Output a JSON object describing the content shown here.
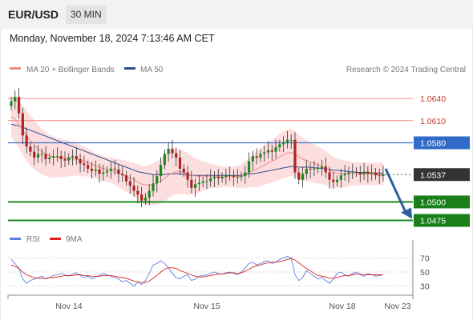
{
  "header": {
    "symbol": "EUR/USD",
    "timeframe": "30 MIN",
    "datetime": "Monday, November 18, 2024 7:13:46 AM CET"
  },
  "legend": {
    "ma20_label": "MA 20 + Bollinger Bands",
    "ma50_label": "MA 50",
    "credit": "Research © 2024 Trading Central",
    "ma20_color": "#f08a8a",
    "ma50_color": "#2e4f8f"
  },
  "rsi_legend": {
    "rsi_label": "RSI",
    "ma9_label": "9MA",
    "rsi_color": "#5b7fe0",
    "ma9_color": "#dd2222"
  },
  "chart_data": {
    "type": "candlestick",
    "instrument": "EUR/USD",
    "interval": "30 MIN",
    "ylim": [
      1.0468,
      1.0665
    ],
    "x_ticks": [
      "Nov 14",
      "Nov 15",
      "Nov 18",
      "Nov 23"
    ],
    "last_price": 1.0537,
    "levels": [
      {
        "value": 1.064,
        "label": "1.0640",
        "kind": "resistance",
        "color": "#f08a8a"
      },
      {
        "value": 1.061,
        "label": "1.0610",
        "kind": "resistance",
        "color": "#f08a8a"
      },
      {
        "value": 1.058,
        "label": "1.0580",
        "kind": "pivot",
        "color": "#3a6fc8"
      },
      {
        "value": 1.0537,
        "label": "1.0537",
        "kind": "last",
        "color": "#333333"
      },
      {
        "value": 1.05,
        "label": "1.0500",
        "kind": "support",
        "color": "#1f8a1f"
      },
      {
        "value": 1.0475,
        "label": "1.0475",
        "kind": "support",
        "color": "#1f8a1f"
      }
    ],
    "projection": {
      "from": 1.0545,
      "to": 1.0475,
      "direction": "down",
      "color": "#2e5f9e"
    },
    "closes": [
      1.0636,
      1.0642,
      1.062,
      1.059,
      1.0575,
      1.0568,
      1.056,
      1.0565,
      1.0565,
      1.0558,
      1.056,
      1.0562,
      1.0562,
      1.0558,
      1.0556,
      1.056,
      1.0562,
      1.0558,
      1.0552,
      1.055,
      1.0545,
      1.0542,
      1.0544,
      1.0538,
      1.054,
      1.0542,
      1.0545,
      1.0544,
      1.0538,
      1.0536,
      1.0528,
      1.0522,
      1.0515,
      1.051,
      1.0502,
      1.0506,
      1.0515,
      1.0525,
      1.0535,
      1.055,
      1.0565,
      1.0572,
      1.0566,
      1.056,
      1.0545,
      1.054,
      1.053,
      1.0519,
      1.0524,
      1.0526,
      1.0528,
      1.0528,
      1.0532,
      1.0534,
      1.0532,
      1.0534,
      1.0536,
      1.0536,
      1.0534,
      1.0534,
      1.0535,
      1.054,
      1.0555,
      1.0562,
      1.056,
      1.0565,
      1.0567,
      1.057,
      1.0568,
      1.0574,
      1.0578,
      1.058,
      1.0584,
      1.0584,
      1.054,
      1.053,
      1.0538,
      1.0545,
      1.0544,
      1.0545,
      1.0546,
      1.0548,
      1.054,
      1.053,
      1.0527,
      1.053,
      1.0536,
      1.0538,
      1.054,
      1.0541,
      1.054,
      1.0537,
      1.0541,
      1.0538,
      1.054,
      1.0536,
      1.0535,
      1.0537
    ],
    "ma20": [
      1.0615,
      1.0612,
      1.0605,
      1.0597,
      1.059,
      1.0583,
      1.0577,
      1.0572,
      1.0568,
      1.0565,
      1.0562,
      1.0561,
      1.056,
      1.056,
      1.0559,
      1.0559,
      1.0558,
      1.0558,
      1.0556,
      1.0555,
      1.0553,
      1.0551,
      1.0549,
      1.0547,
      1.0545,
      1.0544,
      1.0543,
      1.0541,
      1.0539,
      1.0537,
      1.0535,
      1.0532,
      1.053,
      1.0527,
      1.0524,
      1.0523,
      1.0523,
      1.0524,
      1.0526,
      1.0528,
      1.0532,
      1.0536,
      1.0539,
      1.0541,
      1.0541,
      1.054,
      1.0538,
      1.0536,
      1.0535,
      1.0535,
      1.0535,
      1.0535,
      1.0535,
      1.0535,
      1.0534,
      1.0534,
      1.0534,
      1.0534,
      1.0534,
      1.0534,
      1.0535,
      1.0537,
      1.054,
      1.0542,
      1.0544,
      1.0547,
      1.055,
      1.0553,
      1.0555,
      1.0558,
      1.0561,
      1.0564,
      1.0566,
      1.0567,
      1.0565,
      1.0561,
      1.0558,
      1.0556,
      1.0554,
      1.0552,
      1.055,
      1.0548,
      1.0546,
      1.0543,
      1.054,
      1.0539,
      1.0538,
      1.0538,
      1.0538,
      1.0538,
      1.0538,
      1.0538,
      1.0538,
      1.0538,
      1.0538,
      1.0538,
      1.0538,
      1.0538
    ],
    "ma50": [
      1.0605,
      1.0604,
      1.0603,
      1.0601,
      1.0599,
      1.0597,
      1.0595,
      1.0593,
      1.0591,
      1.0589,
      1.0587,
      1.0585,
      1.0583,
      1.0581,
      1.0579,
      1.0577,
      1.0575,
      1.0573,
      1.0571,
      1.0569,
      1.0567,
      1.0565,
      1.0563,
      1.0561,
      1.0559,
      1.0557,
      1.0555,
      1.0553,
      1.0551,
      1.0549,
      1.0547,
      1.0545,
      1.0543,
      1.0541,
      1.054,
      1.0539,
      1.0538,
      1.0537,
      1.0537,
      1.0537,
      1.0537,
      1.0538,
      1.0538,
      1.0538,
      1.0538,
      1.0537,
      1.0537,
      1.0536,
      1.0536,
      1.0536,
      1.0536,
      1.0536,
      1.0536,
      1.0536,
      1.0536,
      1.0536,
      1.0536,
      1.0536,
      1.0536,
      1.0536,
      1.0536,
      1.0537,
      1.0538,
      1.0538,
      1.0539,
      1.054,
      1.0541,
      1.0542,
      1.0543,
      1.0544,
      1.0545,
      1.0546,
      1.0547,
      1.0548,
      1.0548,
      1.0547,
      1.0547,
      1.0547,
      1.0547,
      1.0546,
      1.0546,
      1.0545,
      1.0545,
      1.0544,
      1.0543,
      1.0543,
      1.0542,
      1.0542,
      1.0541,
      1.0541,
      1.054,
      1.054,
      1.054,
      1.054,
      1.0539,
      1.0539,
      1.0539,
      1.0539
    ],
    "bollinger_width": [
      0.0028,
      0.003,
      0.0032,
      0.0033,
      0.0034,
      0.0034,
      0.0033,
      0.0032,
      0.0031,
      0.003,
      0.0029,
      0.0028,
      0.0027,
      0.0026,
      0.0025,
      0.0024,
      0.0023,
      0.0022,
      0.0021,
      0.002,
      0.0019,
      0.0018,
      0.0017,
      0.0017,
      0.0017,
      0.0017,
      0.0017,
      0.0018,
      0.0019,
      0.002,
      0.0021,
      0.0022,
      0.0023,
      0.0024,
      0.0025,
      0.0026,
      0.0027,
      0.0028,
      0.0029,
      0.003,
      0.0031,
      0.0031,
      0.0031,
      0.0031,
      0.003,
      0.0029,
      0.0028,
      0.0026,
      0.0024,
      0.0022,
      0.002,
      0.0018,
      0.0017,
      0.0016,
      0.0015,
      0.0014,
      0.0014,
      0.0014,
      0.0014,
      0.0015,
      0.0016,
      0.0018,
      0.002,
      0.0022,
      0.0024,
      0.0026,
      0.0027,
      0.0028,
      0.0029,
      0.003,
      0.0031,
      0.0032,
      0.0032,
      0.0032,
      0.0031,
      0.003,
      0.0029,
      0.0028,
      0.0027,
      0.0026,
      0.0025,
      0.0024,
      0.0023,
      0.0022,
      0.0021,
      0.002,
      0.0019,
      0.0018,
      0.0017,
      0.0016,
      0.0016,
      0.0015,
      0.0015,
      0.0015,
      0.0015,
      0.0015,
      0.0015,
      0.0015
    ],
    "rsi": {
      "ylim": [
        25,
        75
      ],
      "ticks": [
        70,
        50,
        30
      ],
      "rsi": [
        68,
        62,
        55,
        40,
        34,
        38,
        40,
        42,
        44,
        40,
        42,
        45,
        46,
        48,
        46,
        44,
        47,
        49,
        45,
        42,
        44,
        40,
        43,
        45,
        48,
        46,
        44,
        42,
        40,
        36,
        38,
        34,
        30,
        36,
        32,
        38,
        48,
        60,
        62,
        66,
        62,
        56,
        48,
        42,
        40,
        44,
        46,
        38,
        40,
        44,
        45,
        46,
        48,
        50,
        48,
        47,
        49,
        50,
        48,
        46,
        50,
        56,
        62,
        64,
        60,
        62,
        65,
        66,
        62,
        64,
        68,
        70,
        72,
        70,
        46,
        38,
        42,
        52,
        48,
        44,
        40,
        42,
        38,
        34,
        40,
        48,
        50,
        46,
        44,
        48,
        50,
        46,
        44,
        48,
        46,
        44,
        45,
        46
      ],
      "ma9": [
        60,
        58,
        55,
        50,
        46,
        44,
        42,
        41,
        41,
        41,
        42,
        42,
        43,
        44,
        45,
        45,
        45,
        46,
        46,
        45,
        45,
        44,
        44,
        44,
        45,
        45,
        45,
        44,
        43,
        42,
        41,
        39,
        37,
        36,
        35,
        35,
        37,
        41,
        45,
        50,
        54,
        56,
        56,
        55,
        52,
        50,
        48,
        46,
        44,
        43,
        43,
        44,
        45,
        46,
        47,
        47,
        48,
        49,
        49,
        48,
        49,
        51,
        54,
        57,
        59,
        60,
        62,
        63,
        64,
        64,
        65,
        66,
        68,
        69,
        67,
        63,
        59,
        55,
        52,
        48,
        45,
        44,
        43,
        41,
        41,
        42,
        44,
        45,
        45,
        46,
        47,
        47,
        46,
        46,
        46,
        46,
        46,
        46
      ]
    }
  }
}
